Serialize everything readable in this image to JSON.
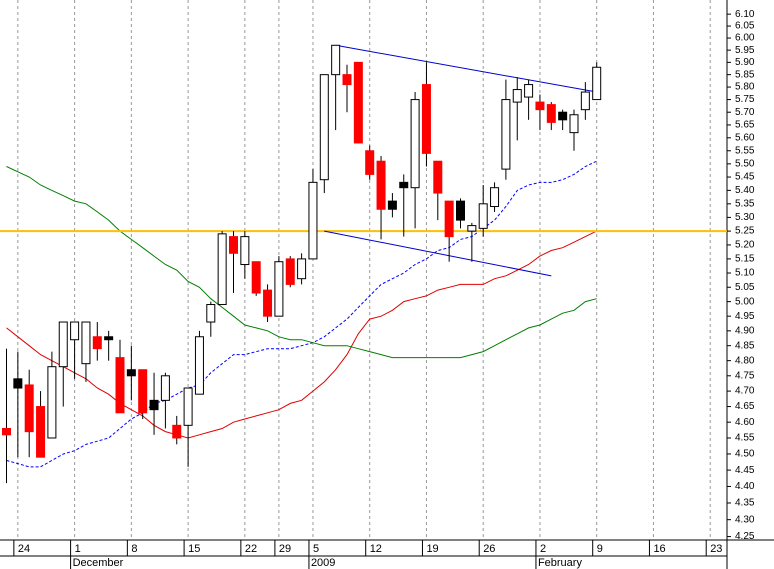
{
  "chart_data": {
    "type": "candlestick",
    "log_scale": true,
    "x_grid": true,
    "ylim": [
      4.24,
      6.16
    ],
    "yticks": [
      4.25,
      {
        "value": 4.3,
        "label": "4.30"
      },
      4.35,
      {
        "value": 4.4,
        "label": "4.40"
      },
      4.45,
      {
        "value": 4.5,
        "label": "4.50"
      },
      4.55,
      {
        "value": 4.6,
        "label": "4.60"
      },
      4.65,
      {
        "value": 4.7,
        "label": "4.70"
      },
      4.75,
      {
        "value": 4.8,
        "label": "4.80"
      },
      4.85,
      {
        "value": 4.9,
        "label": "4.90"
      },
      4.95,
      {
        "value": 5,
        "label": "5.00"
      },
      5.05,
      {
        "value": 5.1,
        "label": "5.10"
      },
      5.15,
      {
        "value": 5.2,
        "label": "5.20"
      },
      5.25,
      {
        "value": 5.3,
        "label": "5.30"
      },
      5.35,
      {
        "value": 5.4,
        "label": "5.40"
      },
      5.45,
      {
        "value": 5.5,
        "label": "5.50"
      },
      5.55,
      {
        "value": 5.6,
        "label": "5.60"
      },
      5.65,
      {
        "value": 5.7,
        "label": "5.70"
      },
      5.75,
      {
        "value": 5.8,
        "label": "5.80"
      },
      5.85,
      {
        "value": 5.9,
        "label": "5.90"
      },
      5.95,
      {
        "value": 6,
        "label": "6.00"
      },
      6.05,
      {
        "value": 6.1,
        "label": "6.10"
      }
    ],
    "categories": [
      null,
      "24",
      null,
      null,
      null,
      null,
      "1",
      null,
      null,
      null,
      null,
      "8",
      null,
      null,
      null,
      null,
      "15",
      null,
      null,
      null,
      null,
      "22",
      null,
      null,
      "29",
      null,
      null,
      "5",
      null,
      null,
      null,
      null,
      "12",
      null,
      null,
      null,
      null,
      "19",
      null,
      null,
      null,
      null,
      "26",
      null,
      null,
      null,
      null,
      "2",
      null,
      null,
      null,
      null,
      "9",
      null,
      null,
      null,
      null,
      "16",
      null,
      null,
      null,
      null,
      "23",
      null
    ],
    "x_groups": [
      {
        "index": 6,
        "label": "December"
      },
      {
        "index": 27,
        "label": "2009"
      },
      {
        "index": 47,
        "label": "February"
      }
    ],
    "open": [
      4.58,
      4.74,
      4.72,
      4.65,
      4.55,
      4.78,
      4.87,
      4.79,
      4.88,
      4.88,
      4.81,
      4.77,
      4.77,
      4.67,
      4.67,
      4.59,
      4.59,
      4.69,
      4.93,
      4.99,
      5.23,
      5.13,
      5.14,
      5.04,
      4.95,
      5.15,
      5.08,
      5.15,
      5.44,
      5.85,
      5.85,
      5.9,
      5.55,
      5.51,
      5.36,
      5.43,
      5.41,
      5.81,
      5.51,
      5.36,
      5.36,
      5.25,
      5.26,
      5.34,
      5.48,
      5.74,
      5.76,
      5.74,
      5.73,
      5.7,
      5.62,
      5.71,
      5.75,
      null,
      null,
      null,
      null,
      null,
      null,
      null,
      null,
      null,
      null,
      null
    ],
    "high": [
      4.84,
      4.83,
      4.77,
      4.7,
      4.83,
      4.93,
      4.93,
      4.93,
      4.93,
      4.9,
      4.87,
      4.85,
      4.77,
      4.76,
      4.76,
      4.62,
      4.71,
      4.9,
      5.0,
      5.25,
      5.25,
      5.25,
      5.14,
      5.06,
      5.16,
      5.16,
      5.17,
      5.48,
      5.85,
      5.97,
      5.89,
      5.9,
      5.57,
      5.53,
      5.39,
      5.46,
      5.78,
      5.9,
      5.51,
      5.36,
      5.37,
      5.28,
      5.42,
      5.43,
      5.83,
      5.84,
      5.83,
      5.77,
      5.74,
      5.71,
      5.71,
      5.82,
      5.9,
      null,
      null,
      null,
      null,
      null,
      null,
      null,
      null,
      null,
      null,
      null
    ],
    "low": [
      4.41,
      4.49,
      4.49,
      4.49,
      4.55,
      4.65,
      4.74,
      4.73,
      4.8,
      4.8,
      4.63,
      4.67,
      4.61,
      4.56,
      4.58,
      4.53,
      4.46,
      4.69,
      4.88,
      4.99,
      5.03,
      5.08,
      5.02,
      4.93,
      4.95,
      5.05,
      5.06,
      5.15,
      5.39,
      5.63,
      5.7,
      5.58,
      5.44,
      5.22,
      5.3,
      5.23,
      5.26,
      5.49,
      5.29,
      5.14,
      5.26,
      5.14,
      5.23,
      5.32,
      5.44,
      5.59,
      5.67,
      5.63,
      5.63,
      5.63,
      5.55,
      5.67,
      5.75,
      null,
      null,
      null,
      null,
      null,
      null,
      null,
      null,
      null,
      null,
      null
    ],
    "close": [
      4.56,
      4.71,
      4.57,
      4.49,
      4.78,
      4.93,
      4.93,
      4.93,
      4.84,
      4.87,
      4.63,
      4.75,
      4.63,
      4.64,
      4.75,
      4.55,
      4.71,
      4.88,
      4.99,
      5.24,
      5.17,
      5.23,
      5.03,
      4.95,
      5.14,
      5.06,
      5.15,
      5.43,
      5.85,
      5.97,
      5.81,
      5.58,
      5.46,
      5.33,
      5.33,
      5.41,
      5.75,
      5.54,
      5.39,
      5.23,
      5.29,
      5.27,
      5.35,
      5.41,
      5.75,
      5.79,
      5.81,
      5.71,
      5.66,
      5.67,
      5.69,
      5.78,
      5.88,
      null,
      null,
      null,
      null,
      null,
      null,
      null,
      null,
      null,
      null,
      null
    ],
    "up_color": "#ffffff",
    "down_color": "#ff0000",
    "down_above_prev_color": "#000000",
    "series": [
      {
        "color": "#e00000",
        "dashed": false,
        "values": [
          4.91,
          4.88,
          4.85,
          4.82,
          4.8,
          4.78,
          4.76,
          4.74,
          4.71,
          4.69,
          4.66,
          4.64,
          4.62,
          4.59,
          4.57,
          4.56,
          4.55,
          4.56,
          4.57,
          4.58,
          4.6,
          4.61,
          4.62,
          4.63,
          4.64,
          4.66,
          4.67,
          4.7,
          4.73,
          4.77,
          4.82,
          4.89,
          4.94,
          4.95,
          4.97,
          5.0,
          5.01,
          5.02,
          5.04,
          5.05,
          5.06,
          5.06,
          5.06,
          5.08,
          5.09,
          5.11,
          5.13,
          5.16,
          5.18,
          5.19,
          5.21,
          5.23,
          5.25,
          null,
          null,
          null,
          null,
          null,
          null,
          null,
          null,
          null,
          null,
          null
        ]
      },
      {
        "color": "#0000ff",
        "dashed": true,
        "values": [
          4.48,
          4.47,
          4.46,
          4.46,
          4.48,
          4.5,
          4.51,
          4.53,
          4.54,
          4.55,
          4.58,
          4.61,
          4.63,
          4.66,
          4.67,
          4.69,
          4.71,
          4.72,
          4.76,
          4.79,
          4.82,
          4.82,
          4.83,
          4.84,
          4.84,
          4.84,
          4.85,
          4.86,
          4.88,
          4.91,
          4.94,
          4.98,
          5.02,
          5.06,
          5.08,
          5.1,
          5.13,
          5.15,
          5.18,
          5.19,
          5.22,
          5.23,
          5.26,
          5.29,
          5.34,
          5.4,
          5.42,
          5.43,
          5.43,
          5.44,
          5.46,
          5.49,
          5.51,
          null,
          null,
          null,
          null,
          null,
          null,
          null,
          null,
          null,
          null,
          null
        ]
      },
      {
        "color": "#008000",
        "dashed": false,
        "values": [
          5.49,
          5.47,
          5.45,
          5.42,
          5.4,
          5.38,
          5.36,
          5.35,
          5.32,
          5.29,
          5.25,
          5.22,
          5.19,
          5.16,
          5.13,
          5.11,
          5.07,
          5.05,
          5.01,
          4.98,
          4.95,
          4.92,
          4.91,
          4.9,
          4.88,
          4.87,
          4.87,
          4.86,
          4.85,
          4.85,
          4.85,
          4.84,
          4.83,
          4.82,
          4.81,
          4.81,
          4.81,
          4.81,
          4.81,
          4.81,
          4.81,
          4.82,
          4.83,
          4.85,
          4.87,
          4.89,
          4.91,
          4.92,
          4.94,
          4.96,
          4.97,
          5.0,
          5.01,
          null,
          null,
          null,
          null,
          null,
          null,
          null,
          null,
          null,
          null,
          null
        ]
      }
    ],
    "hline": {
      "value": 5.25,
      "color": "#ffc000"
    },
    "trendlines": [
      {
        "x": [
          29,
          52
        ],
        "values": [
          5.97,
          5.78
        ],
        "color": "#0000cc"
      },
      {
        "x": [
          28,
          48
        ],
        "values": [
          5.25,
          5.09
        ],
        "color": "#0000cc"
      }
    ]
  }
}
